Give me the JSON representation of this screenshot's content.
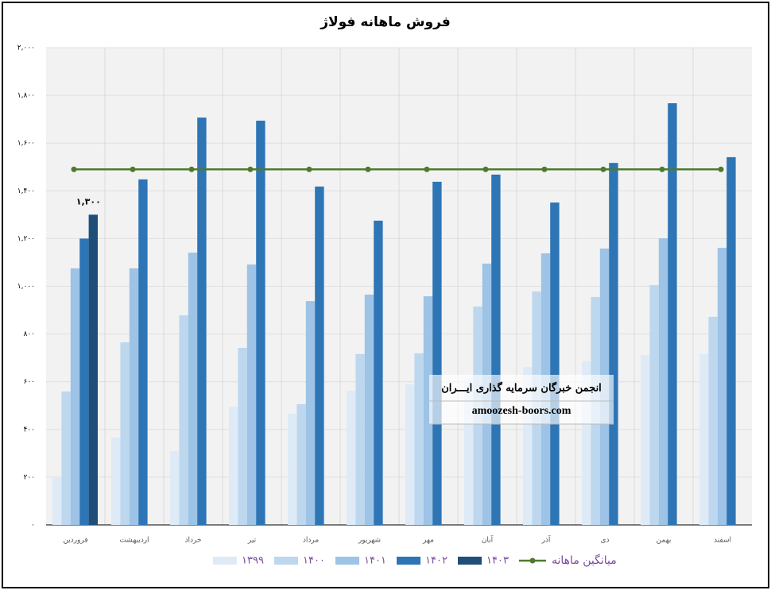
{
  "chart_data": {
    "type": "bar",
    "title": "فروش ماهانه فولاژ",
    "categories": [
      "فروردین",
      "اردیبهشت",
      "خرداد",
      "تیر",
      "مرداد",
      "شهریور",
      "مهر",
      "آبان",
      "آذر",
      "دی",
      "بهمن",
      "اسفند"
    ],
    "series": [
      {
        "name": "۱۳۹۹",
        "color": "#deebf7",
        "values": [
          200,
          366,
          310,
          496,
          466,
          562,
          589,
          610,
          662,
          686,
          712,
          716
        ]
      },
      {
        "name": "۱۴۰۰",
        "color": "#bdd7ee",
        "values": [
          559,
          765,
          878,
          742,
          506,
          716,
          719,
          915,
          978,
          955,
          1005,
          872
        ]
      },
      {
        "name": "۱۴۰۱",
        "color": "#9dc3e6",
        "values": [
          1075,
          1075,
          1141,
          1091,
          938,
          965,
          958,
          1095,
          1138,
          1158,
          1201,
          1161
        ]
      },
      {
        "name": "۱۴۰۲",
        "color": "#2e75b6",
        "values": [
          1200,
          1448,
          1707,
          1694,
          1418,
          1275,
          1438,
          1468,
          1351,
          1517,
          1767,
          1541
        ]
      },
      {
        "name": "۱۴۰۳",
        "color": "#1f4e79",
        "values": [
          1300,
          null,
          null,
          null,
          null,
          null,
          null,
          null,
          null,
          null,
          null,
          null
        ],
        "value_labels": [
          "۱,۳۰۰",
          null,
          null,
          null,
          null,
          null,
          null,
          null,
          null,
          null,
          null,
          null
        ]
      },
      {
        "name": "میانگین ماهانه",
        "color": "#4e7a2e",
        "type": "line",
        "values": [
          1490,
          1490,
          1490,
          1490,
          1490,
          1490,
          1490,
          1490,
          1490,
          1490,
          1490,
          1490
        ]
      }
    ],
    "ylim": [
      0,
      2000
    ],
    "yticks": [
      {
        "value": 0,
        "label": "۰"
      },
      {
        "value": 200,
        "label": "۲۰۰"
      },
      {
        "value": 400,
        "label": "۴۰۰"
      },
      {
        "value": 600,
        "label": "۶۰۰"
      },
      {
        "value": 800,
        "label": "۸۰۰"
      },
      {
        "value": 1000,
        "label": "۱,۰۰۰"
      },
      {
        "value": 1200,
        "label": "۱,۲۰۰"
      },
      {
        "value": 1400,
        "label": "۱,۴۰۰"
      },
      {
        "value": 1600,
        "label": "۱,۶۰۰"
      },
      {
        "value": 1800,
        "label": "۱,۸۰۰"
      },
      {
        "value": 2000,
        "label": "۲,۰۰۰"
      }
    ],
    "grid": true,
    "watermark": {
      "title": "انجمن خبرگان سرمایه گذاری ایـــران",
      "url": "amoozesh-boors.com"
    }
  }
}
